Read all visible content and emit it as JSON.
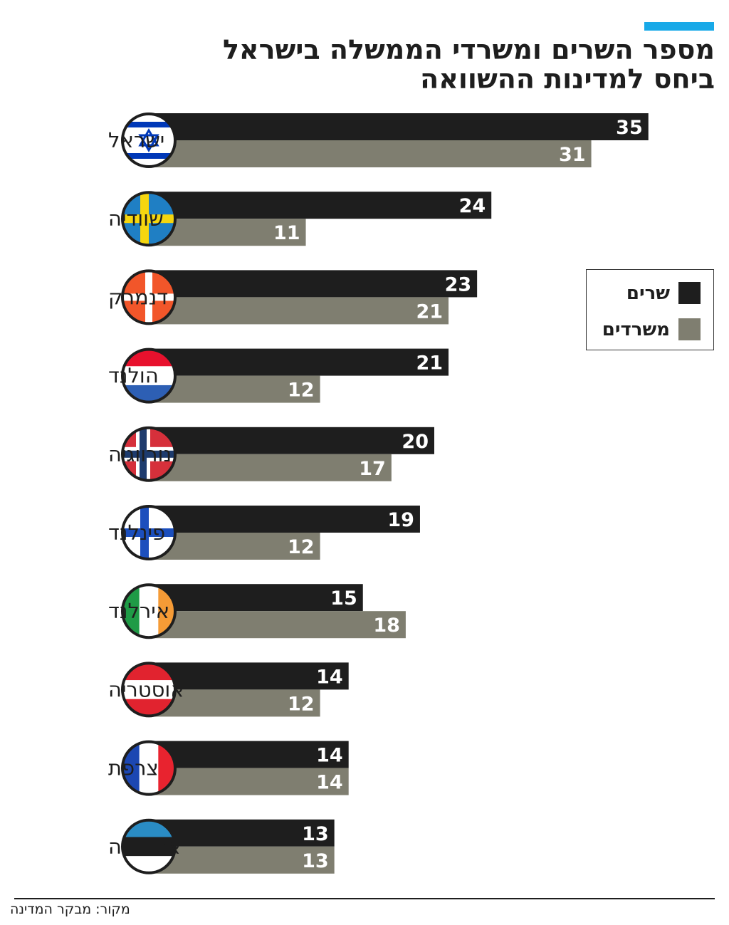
{
  "title_lines": [
    "מספר השרים ומשרדי הממשלה בישראל",
    "ביחס למדינות ההשוואה"
  ],
  "source": "מקור: מבקר המדינה",
  "colors": {
    "ministers": "#1e1e1e",
    "offices": "#7f7e70",
    "accent": "#18a9e8"
  },
  "legend": {
    "ministers": "שרים",
    "offices": "משרדים"
  },
  "chart_data": {
    "type": "bar",
    "orientation": "horizontal",
    "categories": [
      "ישראל",
      "שוודיה",
      "דנמרק",
      "הולנד",
      "נורווגיה",
      "פינלנד",
      "אירלנד",
      "אוסטריה",
      "צרפת",
      "אסטוניה"
    ],
    "flag_icons": [
      "israel-flag-icon",
      "sweden-flag-icon",
      "denmark-flag-icon",
      "netherlands-flag-icon",
      "norway-flag-icon",
      "finland-flag-icon",
      "ireland-flag-icon",
      "austria-flag-icon",
      "france-flag-icon",
      "estonia-flag-icon"
    ],
    "series": [
      {
        "name": "שרים",
        "color": "#1e1e1e",
        "values": [
          35,
          24,
          23,
          21,
          20,
          19,
          15,
          14,
          14,
          13
        ]
      },
      {
        "name": "משרדים",
        "color": "#7f7e70",
        "values": [
          31,
          11,
          21,
          12,
          17,
          12,
          18,
          12,
          14,
          13
        ]
      }
    ],
    "legend_position": "right",
    "grid": false,
    "xlim": [
      0,
      35
    ]
  }
}
